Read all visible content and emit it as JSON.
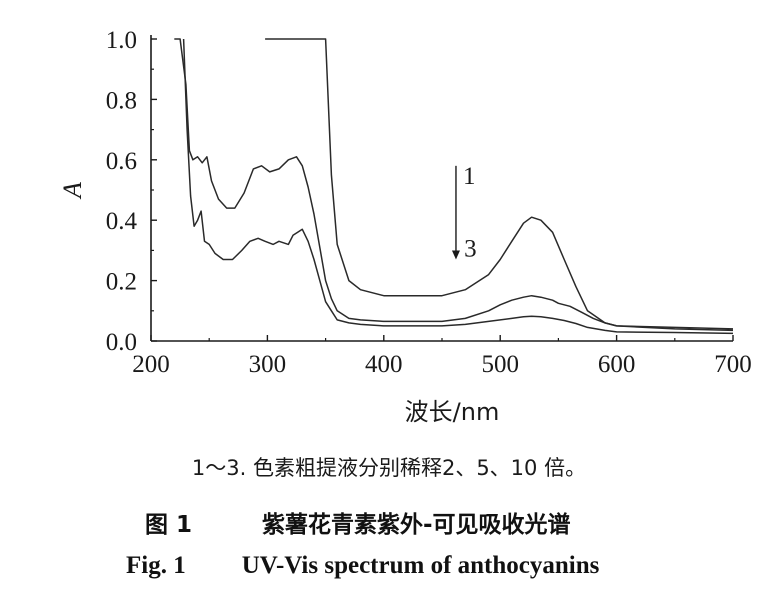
{
  "chart_data": {
    "type": "line",
    "xlabel": "波长/nm",
    "ylabel": "A",
    "xlim": [
      200,
      700
    ],
    "ylim": [
      0.0,
      1.0
    ],
    "x_ticks": [
      "200",
      "300",
      "400",
      "500",
      "600",
      "700"
    ],
    "y_ticks": [
      "0.0",
      "0.2",
      "0.4",
      "0.6",
      "0.8",
      "1.0"
    ],
    "grid": false,
    "annotations": {
      "arrow_top_label": "1",
      "arrow_bottom_label": "3"
    },
    "series": [
      {
        "name": "1",
        "x": [
          298,
          310,
          320,
          330,
          340,
          345,
          350,
          355,
          360,
          370,
          380,
          400,
          420,
          450,
          470,
          490,
          500,
          510,
          520,
          527,
          535,
          545,
          555,
          565,
          575,
          590,
          600,
          650,
          700
        ],
        "y": [
          1.0,
          1.0,
          1.0,
          1.0,
          1.0,
          1.0,
          1.0,
          0.55,
          0.32,
          0.2,
          0.17,
          0.15,
          0.15,
          0.15,
          0.17,
          0.22,
          0.27,
          0.33,
          0.39,
          0.41,
          0.4,
          0.36,
          0.27,
          0.18,
          0.1,
          0.06,
          0.05,
          0.045,
          0.04
        ]
      },
      {
        "name": "2",
        "x": [
          220,
          225,
          230,
          233,
          236,
          240,
          244,
          248,
          252,
          258,
          265,
          272,
          280,
          288,
          295,
          302,
          310,
          318,
          325,
          330,
          335,
          340,
          345,
          350,
          355,
          360,
          370,
          380,
          400,
          450,
          470,
          490,
          500,
          510,
          520,
          527,
          535,
          545,
          550,
          555,
          560,
          570,
          580,
          590,
          600,
          650,
          700
        ],
        "y": [
          1.0,
          1.0,
          0.85,
          0.63,
          0.6,
          0.61,
          0.59,
          0.61,
          0.53,
          0.47,
          0.44,
          0.44,
          0.49,
          0.57,
          0.58,
          0.56,
          0.57,
          0.6,
          0.61,
          0.58,
          0.51,
          0.42,
          0.31,
          0.2,
          0.14,
          0.1,
          0.075,
          0.07,
          0.065,
          0.065,
          0.075,
          0.1,
          0.12,
          0.135,
          0.145,
          0.15,
          0.145,
          0.135,
          0.125,
          0.12,
          0.115,
          0.095,
          0.075,
          0.06,
          0.05,
          0.04,
          0.035
        ]
      },
      {
        "name": "3",
        "x": [
          228,
          231,
          234,
          237,
          240,
          243,
          246,
          250,
          255,
          262,
          270,
          278,
          285,
          292,
          298,
          305,
          310,
          318,
          322,
          326,
          330,
          335,
          340,
          345,
          350,
          355,
          360,
          370,
          380,
          400,
          450,
          470,
          490,
          510,
          520,
          527,
          535,
          545,
          555,
          565,
          575,
          590,
          600,
          650,
          700
        ],
        "y": [
          1.0,
          0.7,
          0.48,
          0.38,
          0.4,
          0.43,
          0.33,
          0.32,
          0.29,
          0.27,
          0.27,
          0.3,
          0.33,
          0.34,
          0.33,
          0.32,
          0.33,
          0.32,
          0.35,
          0.36,
          0.37,
          0.33,
          0.27,
          0.2,
          0.13,
          0.1,
          0.07,
          0.06,
          0.055,
          0.05,
          0.05,
          0.055,
          0.065,
          0.075,
          0.08,
          0.082,
          0.08,
          0.075,
          0.068,
          0.058,
          0.045,
          0.035,
          0.03,
          0.028,
          0.025
        ]
      }
    ]
  },
  "captions": {
    "note": "1～3. 色素粗提液分别稀释2、5、10 倍。",
    "cn_fig_no": "图 1",
    "cn_title": "紫薯花青素紫外-可见吸收光谱",
    "en_fig_no": "Fig. 1",
    "en_title": "UV-Vis spectrum of anthocyanins"
  },
  "colors": {
    "line": "#2a2a2a",
    "axis": "#1a1a1a"
  }
}
